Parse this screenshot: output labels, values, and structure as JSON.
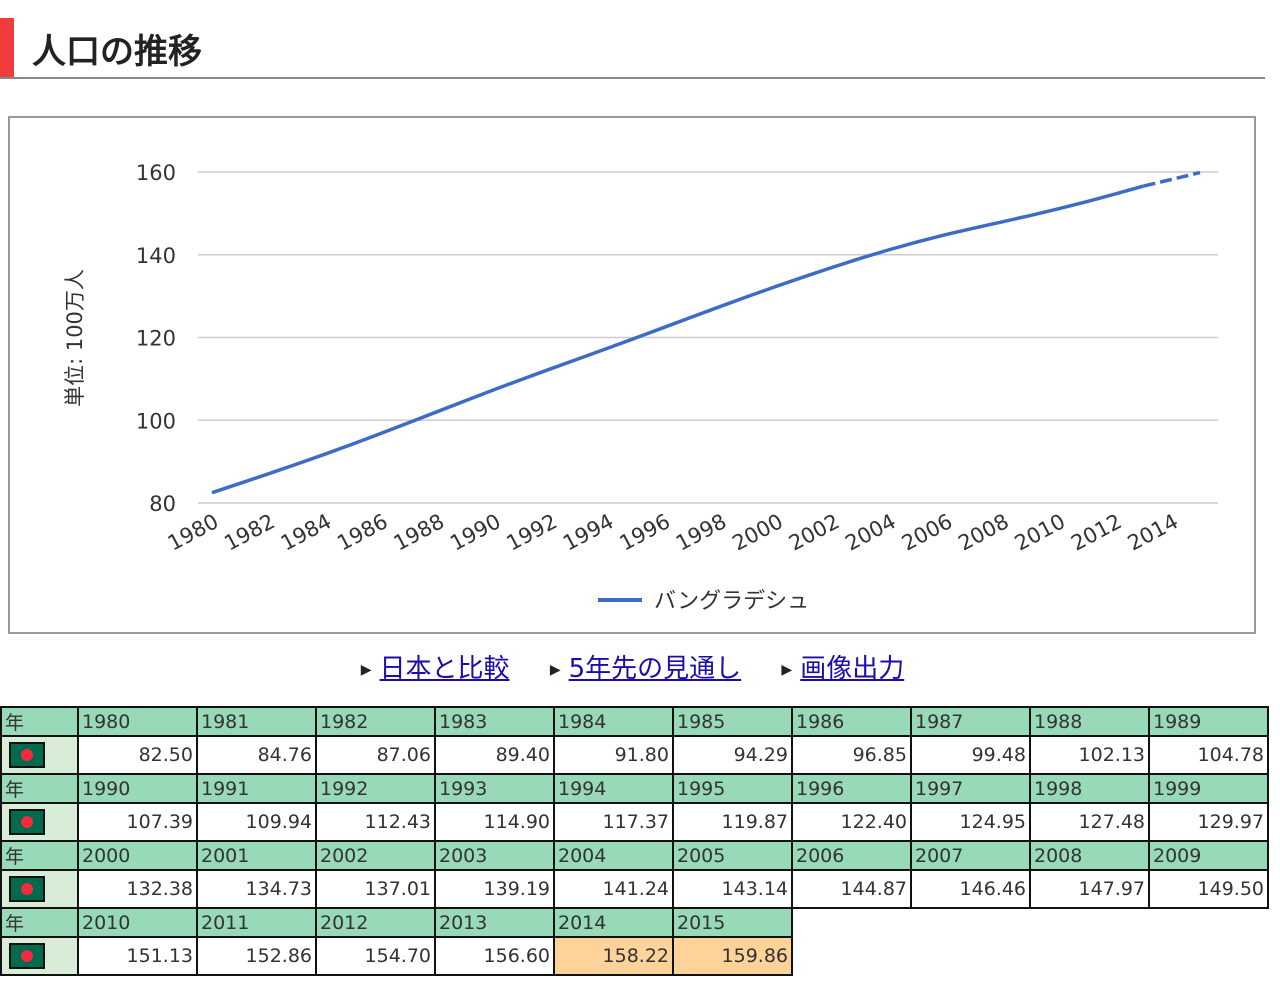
{
  "page_title": "人口の推移",
  "links": [
    "日本と比較",
    "5年先の見通し",
    "画像出力"
  ],
  "table": {
    "year_label": "年",
    "rows": [
      {
        "years": [
          "1980",
          "1981",
          "1982",
          "1983",
          "1984",
          "1985",
          "1986",
          "1987",
          "1988",
          "1989"
        ],
        "values": [
          "82.50",
          "84.76",
          "87.06",
          "89.40",
          "91.80",
          "94.29",
          "96.85",
          "99.48",
          "102.13",
          "104.78"
        ]
      },
      {
        "years": [
          "1990",
          "1991",
          "1992",
          "1993",
          "1994",
          "1995",
          "1996",
          "1997",
          "1998",
          "1999"
        ],
        "values": [
          "107.39",
          "109.94",
          "112.43",
          "114.90",
          "117.37",
          "119.87",
          "122.40",
          "124.95",
          "127.48",
          "129.97"
        ]
      },
      {
        "years": [
          "2000",
          "2001",
          "2002",
          "2003",
          "2004",
          "2005",
          "2006",
          "2007",
          "2008",
          "2009"
        ],
        "values": [
          "132.38",
          "134.73",
          "137.01",
          "139.19",
          "141.24",
          "143.14",
          "144.87",
          "146.46",
          "147.97",
          "149.50"
        ]
      },
      {
        "years": [
          "2010",
          "2011",
          "2012",
          "2013",
          "2014",
          "2015"
        ],
        "values": [
          "151.13",
          "152.86",
          "154.70",
          "156.60",
          "158.22",
          "159.86"
        ]
      }
    ],
    "projected_years": [
      "2014",
      "2015"
    ]
  },
  "chart_data": {
    "type": "line",
    "title": "",
    "ylabel": "単位: 100万人",
    "xlabel": "",
    "ylim": [
      80,
      160
    ],
    "yticks": [
      80,
      100,
      120,
      140,
      160
    ],
    "xticks": [
      1980,
      1982,
      1984,
      1986,
      1988,
      1990,
      1992,
      1994,
      1996,
      1998,
      2000,
      2002,
      2004,
      2006,
      2008,
      2010,
      2012,
      2014
    ],
    "legend": "bottom",
    "grid": true,
    "projection_from": 2013,
    "series": [
      {
        "name": "バングラデシュ",
        "color": "#3c6cc8",
        "x": [
          1980,
          1981,
          1982,
          1983,
          1984,
          1985,
          1986,
          1987,
          1988,
          1989,
          1990,
          1991,
          1992,
          1993,
          1994,
          1995,
          1996,
          1997,
          1998,
          1999,
          2000,
          2001,
          2002,
          2003,
          2004,
          2005,
          2006,
          2007,
          2008,
          2009,
          2010,
          2011,
          2012,
          2013,
          2014,
          2015
        ],
        "values": [
          82.5,
          84.76,
          87.06,
          89.4,
          91.8,
          94.29,
          96.85,
          99.48,
          102.13,
          104.78,
          107.39,
          109.94,
          112.43,
          114.9,
          117.37,
          119.87,
          122.4,
          124.95,
          127.48,
          129.97,
          132.38,
          134.73,
          137.01,
          139.19,
          141.24,
          143.14,
          144.87,
          146.46,
          147.97,
          149.5,
          151.13,
          152.86,
          154.7,
          156.6,
          158.22,
          159.86
        ]
      }
    ]
  }
}
